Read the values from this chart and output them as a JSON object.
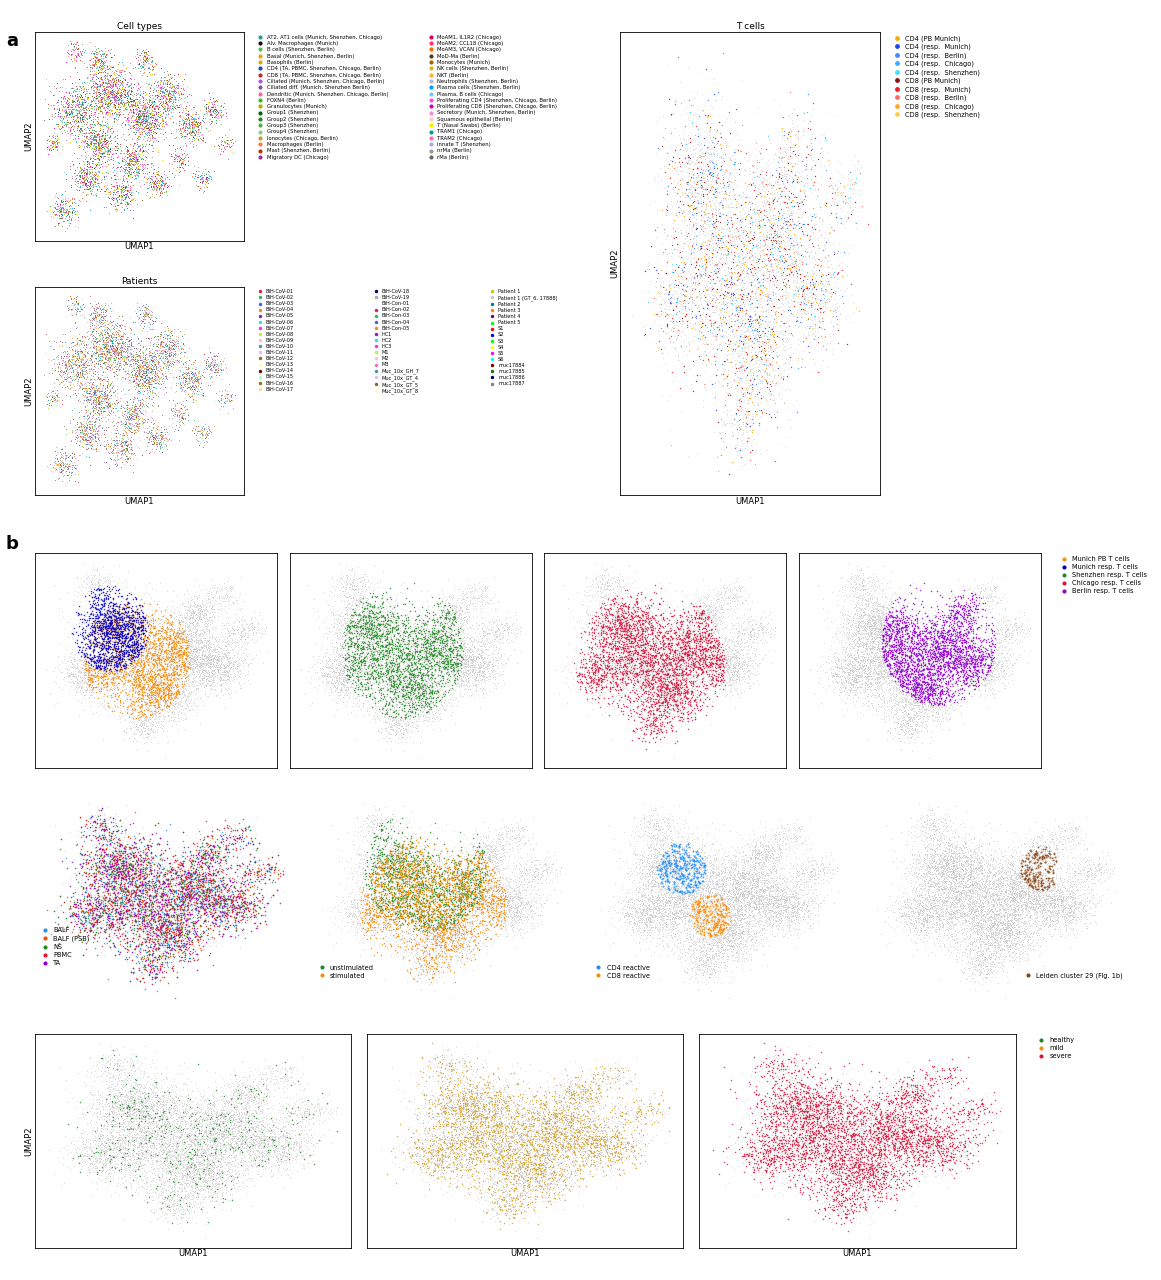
{
  "fig_width": 11.61,
  "fig_height": 12.8,
  "cell_types_title": "Cell types",
  "patients_title": "Patients",
  "tcells_title": "T cells",
  "umap1_label": "UMAP1",
  "umap2_label": "UMAP2",
  "cell_type_legend": [
    {
      "label": "AT2, AT1 cells (Munich, Shenzhen, Chicago)",
      "color": "#1aa0a0"
    },
    {
      "label": "Alv. Macrophages (Munich)",
      "color": "#111111"
    },
    {
      "label": "B cells (Shenzhen, Berlin)",
      "color": "#55bb55"
    },
    {
      "label": "Basal (Munich, Shenzhen, Berlin)",
      "color": "#e8a020"
    },
    {
      "label": "Basophils (Berlin)",
      "color": "#ddaa00"
    },
    {
      "label": "CD4 (TA, PBMC, Shenzhen, Chicago, Berlin)",
      "color": "#2244cc"
    },
    {
      "label": "CD8 (TA, PBMC, Shenzhen, Chicago, Berlin)",
      "color": "#cc2222"
    },
    {
      "label": "Ciliated (Munich, Shenzhen, Chicago, Berlin)",
      "color": "#aa55ee"
    },
    {
      "label": "Ciliated diff. (Munich, Shenzhen Berlin)",
      "color": "#8855aa"
    },
    {
      "label": "Dendritic (Munich, Shenzhen, Chicago, Berlin)",
      "color": "#ff6699"
    },
    {
      "label": "FOXN4 (Berlin)",
      "color": "#33bb33"
    },
    {
      "label": "Granulocytes (Munich)",
      "color": "#aaaa00"
    },
    {
      "label": "Group1 (Shenzhen)",
      "color": "#006600"
    },
    {
      "label": "Group2 (Shenzhen)",
      "color": "#228822"
    },
    {
      "label": "Group3 (Shenzhen)",
      "color": "#55aa55"
    },
    {
      "label": "Group4 (Shenzhen)",
      "color": "#88cc88"
    },
    {
      "label": "Ionocytes (Chicago, Berlin)",
      "color": "#cc9933"
    },
    {
      "label": "Macrophages (Berlin)",
      "color": "#ff7744"
    },
    {
      "label": "Mast (Shenzhen, Berlin)",
      "color": "#bb3300"
    },
    {
      "label": "Migratory DC (Chicago)",
      "color": "#993399"
    },
    {
      "label": "MoAM1, IL1R2 (Chicago)",
      "color": "#cc0066"
    },
    {
      "label": "MoAM2, CCL18 (Chicago)",
      "color": "#ff3366"
    },
    {
      "label": "MoAM3, VCAN (Chicago)",
      "color": "#ff6600"
    },
    {
      "label": "MoD-Ma (Berlin)",
      "color": "#663300"
    },
    {
      "label": "Monocytes (Munich)",
      "color": "#996600"
    },
    {
      "label": "NK cells (Shenzhen, Berlin)",
      "color": "#ddbb00"
    },
    {
      "label": "NKT (Berlin)",
      "color": "#ffaa44"
    },
    {
      "label": "Neutrophils (Shenzhen, Berlin)",
      "color": "#bbbbbb"
    },
    {
      "label": "Plasma cells (Shenzhen, Berlin)",
      "color": "#0099ff"
    },
    {
      "label": "Plasma, B cells (Chicago)",
      "color": "#66ccff"
    },
    {
      "label": "Proliferating CD4 (Shenzhen, Chicago, Berlin)",
      "color": "#ff44ff"
    },
    {
      "label": "Proliferating CD8 (Shenzhen, Chicago, Berlin)",
      "color": "#cc00cc"
    },
    {
      "label": "Secretory (Munich, Shenzhen, Berlin)",
      "color": "#ff88cc"
    },
    {
      "label": "Squamous epithelial (Berlin)",
      "color": "#ffcccc"
    },
    {
      "label": "T (Nasal Swabs) (Berlin)",
      "color": "#eeee00"
    },
    {
      "label": "TRAM1 (Chicago)",
      "color": "#009999"
    },
    {
      "label": "TRAM2 (Chicago)",
      "color": "#ff69b4"
    },
    {
      "label": "innate T (Shenzhen)",
      "color": "#bb99ff"
    },
    {
      "label": "nrMa (Berlin)",
      "color": "#999999"
    },
    {
      "label": "rMa (Berlin)",
      "color": "#666666"
    }
  ],
  "tcell_legend": [
    {
      "label": "CD4 (PB Munich)",
      "color": "#ffaa00"
    },
    {
      "label": "CD4 (resp.  Munich)",
      "color": "#2244ee"
    },
    {
      "label": "CD4 (resp.  Berlin)",
      "color": "#4488ff"
    },
    {
      "label": "CD4 (resp.  Chicago)",
      "color": "#44aaff"
    },
    {
      "label": "CD4 (resp.  Shenzhen)",
      "color": "#44ddff"
    },
    {
      "label": "CD8 (PB Munich)",
      "color": "#881111"
    },
    {
      "label": "CD8 (resp.  Munich)",
      "color": "#ee2222"
    },
    {
      "label": "CD8 (resp.  Berlin)",
      "color": "#ff6666"
    },
    {
      "label": "CD8 (resp.  Chicago)",
      "color": "#ffaa22"
    },
    {
      "label": "CD8 (resp.  Shenzhen)",
      "color": "#ffcc44"
    }
  ],
  "row_b1_legend": [
    {
      "label": "Munich PB T cells",
      "color": "#ff8c00"
    },
    {
      "label": "Munich resp. T cells",
      "color": "#0000cd"
    },
    {
      "label": "Shenzhen resp. T cells",
      "color": "#228b22"
    },
    {
      "label": "Chicago resp. T cells",
      "color": "#dc143c"
    },
    {
      "label": "Berlin resp. T cells",
      "color": "#9400d3"
    }
  ],
  "row_b2a_legend": [
    {
      "label": "BALF",
      "color": "#1e90ff"
    },
    {
      "label": "BALF (PSB)",
      "color": "#ff4500"
    },
    {
      "label": "NS",
      "color": "#228b22"
    },
    {
      "label": "PBMC",
      "color": "#dc143c"
    },
    {
      "label": "TA",
      "color": "#9400d3"
    }
  ],
  "row_b2b_legend": [
    {
      "label": "unstimulated",
      "color": "#228b22"
    },
    {
      "label": "stimulated",
      "color": "#ff8c00"
    }
  ],
  "row_b2c_legend": [
    {
      "label": "CD4 reactive",
      "color": "#1e90ff"
    },
    {
      "label": "CD8 reactive",
      "color": "#ff8c00"
    }
  ],
  "row_b2d_legend": [
    {
      "label": "Leiden cluster 29 (Fig. 1b)",
      "color": "#8b4513"
    }
  ],
  "row_b3_legend": [
    {
      "label": "healthy",
      "color": "#228b22"
    },
    {
      "label": "mild",
      "color": "#ff8c00"
    },
    {
      "label": "severe",
      "color": "#dc143c"
    }
  ]
}
